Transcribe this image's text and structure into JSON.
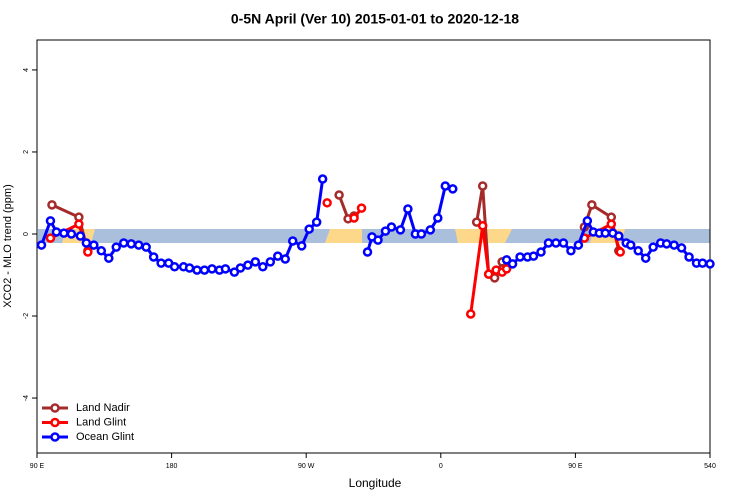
{
  "chart_data": {
    "type": "line",
    "title": "0-5N April (Ver 10)   2015-01-01 to 2020-12-18",
    "xlabel": "Longitude",
    "ylabel": "XCO2 - MLO trend (ppm)",
    "xlim": [
      90,
      540
    ],
    "xticks": [
      {
        "value": 90,
        "label": "90 E"
      },
      180,
      {
        "value": 270,
        "label": "90 W"
      },
      {
        "value": 360,
        "label": "0"
      },
      {
        "value": 450,
        "label": "90 E"
      },
      540
    ],
    "ylim": [
      -5.34,
      4.73
    ],
    "yticks": [
      -4,
      -2,
      0,
      2,
      4
    ],
    "legend": "bottom-left",
    "series": [
      {
        "name": "Land Nadir",
        "color": "#a52a2a",
        "x": [
          100,
          118,
          124,
          200,
          292,
          298,
          302,
          350,
          384,
          388,
          392,
          396,
          401,
          404,
          430,
          456,
          461,
          474,
          479
        ],
        "values": [
          0.71,
          0.41,
          -0.41,
          null,
          0.95,
          0.37,
          0.44,
          null,
          0.29,
          1.17,
          -0.98,
          -1.07,
          -0.68,
          -0.8,
          null,
          0.17,
          0.71,
          0.41,
          -0.41
        ]
      },
      {
        "name": "Land Glint",
        "color": "#ff0000",
        "x": [
          99,
          118,
          124,
          200,
          284,
          300,
          302,
          307,
          350,
          380,
          388,
          392,
          397,
          401,
          404,
          430,
          456,
          474,
          480
        ],
        "values": [
          -0.1,
          0.24,
          -0.44,
          null,
          0.76,
          null,
          0.39,
          0.63,
          null,
          -1.95,
          0.2,
          -0.98,
          -0.88,
          -0.93,
          -0.85,
          null,
          -0.1,
          0.24,
          -0.44
        ]
      },
      {
        "name": "Ocean Glint",
        "color": "#0000ff",
        "x": [
          93,
          99,
          103,
          108,
          113,
          119,
          123,
          128,
          133,
          138,
          143,
          148,
          153,
          158,
          163,
          168,
          173,
          178,
          182,
          188,
          192,
          197,
          202,
          207,
          212,
          216,
          222,
          226,
          231,
          236,
          241,
          246,
          251,
          256,
          261,
          267,
          272,
          277,
          281,
          296,
          311,
          314,
          318,
          323,
          327,
          333,
          338,
          343,
          347,
          353,
          358,
          363,
          368,
          386,
          404,
          408,
          413,
          418,
          422,
          427,
          432,
          437,
          442,
          447,
          452,
          458,
          462,
          466,
          470,
          475,
          479,
          484,
          487,
          492,
          497,
          502,
          507,
          511,
          516,
          521,
          526,
          531,
          535,
          540
        ],
        "values": [
          -0.27,
          0.32,
          0.05,
          0.02,
          0,
          -0.05,
          -0.22,
          -0.27,
          -0.41,
          -0.59,
          -0.32,
          -0.22,
          -0.24,
          -0.27,
          -0.32,
          -0.56,
          -0.71,
          -0.71,
          -0.8,
          -0.8,
          -0.83,
          -0.88,
          -0.88,
          -0.85,
          -0.88,
          -0.85,
          -0.93,
          -0.83,
          -0.76,
          -0.68,
          -0.8,
          -0.68,
          -0.54,
          -0.61,
          -0.17,
          -0.29,
          0.12,
          0.29,
          1.34,
          null,
          -0.44,
          -0.07,
          -0.15,
          0.07,
          0.17,
          0.1,
          0.61,
          0,
          0,
          0.1,
          0.39,
          1.17,
          1.1,
          null,
          -0.63,
          -0.73,
          -0.56,
          -0.56,
          -0.54,
          -0.44,
          -0.22,
          -0.22,
          -0.22,
          -0.41,
          -0.27,
          0.32,
          0.05,
          0.02,
          0.02,
          0.02,
          -0.05,
          -0.22,
          -0.27,
          -0.41,
          -0.59,
          -0.32,
          -0.22,
          -0.24,
          -0.27,
          -0.34,
          -0.56,
          -0.71,
          -0.71,
          -0.73
        ]
      }
    ]
  }
}
